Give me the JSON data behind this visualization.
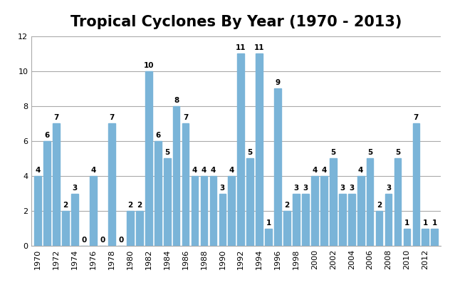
{
  "title": "Tropical Cyclones By Year (1970 - 2013)",
  "years": [
    1970,
    1971,
    1972,
    1973,
    1974,
    1975,
    1976,
    1977,
    1978,
    1979,
    1980,
    1981,
    1982,
    1983,
    1984,
    1985,
    1986,
    1987,
    1988,
    1989,
    1990,
    1991,
    1992,
    1993,
    1994,
    1995,
    1996,
    1997,
    1998,
    1999,
    2000,
    2001,
    2002,
    2003,
    2004,
    2005,
    2006,
    2007,
    2008,
    2009,
    2010,
    2011,
    2012,
    2013
  ],
  "values": [
    4,
    6,
    7,
    2,
    3,
    0,
    4,
    0,
    7,
    0,
    2,
    2,
    10,
    6,
    5,
    8,
    7,
    4,
    4,
    4,
    3,
    4,
    11,
    5,
    11,
    1,
    9,
    2,
    3,
    3,
    4,
    4,
    5,
    3,
    3,
    4,
    5,
    2,
    3,
    5,
    1,
    7,
    1,
    1
  ],
  "bar_color": "#7ab4d8",
  "ylim": [
    0,
    12
  ],
  "yticks": [
    0,
    2,
    4,
    6,
    8,
    10,
    12
  ],
  "label_fontsize": 7.5,
  "title_fontsize": 15,
  "tick_fontsize": 8,
  "background_color": "#ffffff",
  "grid_color": "#aaaaaa"
}
